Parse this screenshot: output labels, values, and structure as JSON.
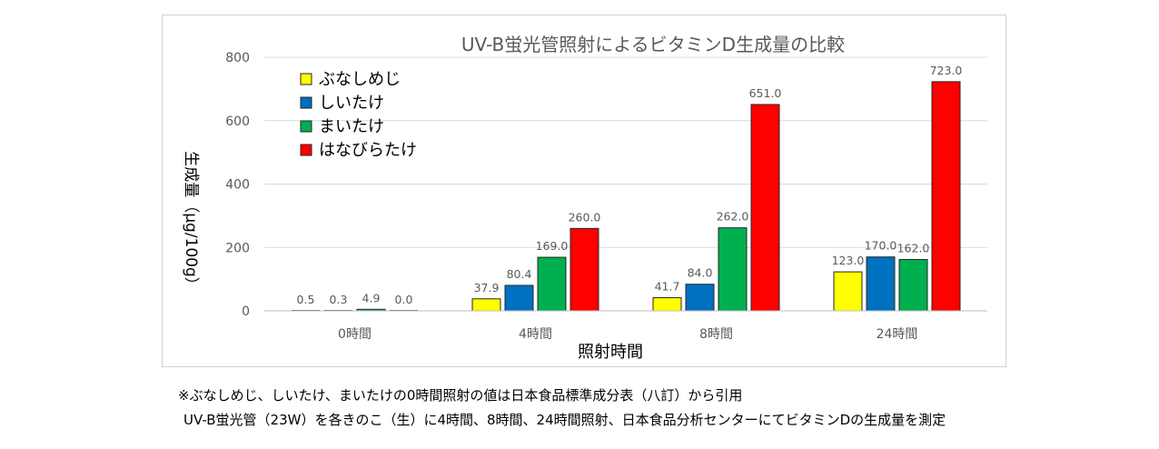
{
  "chart_data": {
    "type": "bar",
    "title": "UV-B蛍光管照射によるビタミンD生成量の比較",
    "xlabel": "照射時間",
    "ylabel": "生成量（μg/100g）",
    "categories": [
      "0時間",
      "4時間",
      "8時間",
      "24時間"
    ],
    "ylim": [
      0,
      800
    ],
    "yticks": [
      0,
      200,
      400,
      600,
      800
    ],
    "grid": true,
    "legend_position": "top-left",
    "series": [
      {
        "name": "ぶなしめじ",
        "color": "#ffff00",
        "values": [
          0.5,
          37.9,
          41.7,
          123.0
        ],
        "labels": [
          "0.5",
          "37.9",
          "41.7",
          "123.0"
        ]
      },
      {
        "name": "しいたけ",
        "color": "#0070c0",
        "values": [
          0.3,
          80.4,
          84.0,
          170.0
        ],
        "labels": [
          "0.3",
          "80.4",
          "84.0",
          "170.0"
        ]
      },
      {
        "name": "まいたけ",
        "color": "#00b050",
        "values": [
          4.9,
          169.0,
          262.0,
          162.0
        ],
        "labels": [
          "4.9",
          "169.0",
          "262.0",
          "162.0"
        ]
      },
      {
        "name": "はなびらたけ",
        "color": "#ff0000",
        "values": [
          0.0,
          260.0,
          651.0,
          723.0
        ],
        "labels": [
          "0.0",
          "260.0",
          "651.0",
          "723.0"
        ]
      }
    ]
  },
  "notes": {
    "line1": "※ぶなしめじ、しいたけ、まいたけの0時間照射の値は日本食品標準成分表（八訂）から引用",
    "line2": "UV-B蛍光管（23W）を各きのこ（生）に4時間、8時間、24時間照射、日本食品分析センターにてビタミンDの生成量を測定"
  }
}
